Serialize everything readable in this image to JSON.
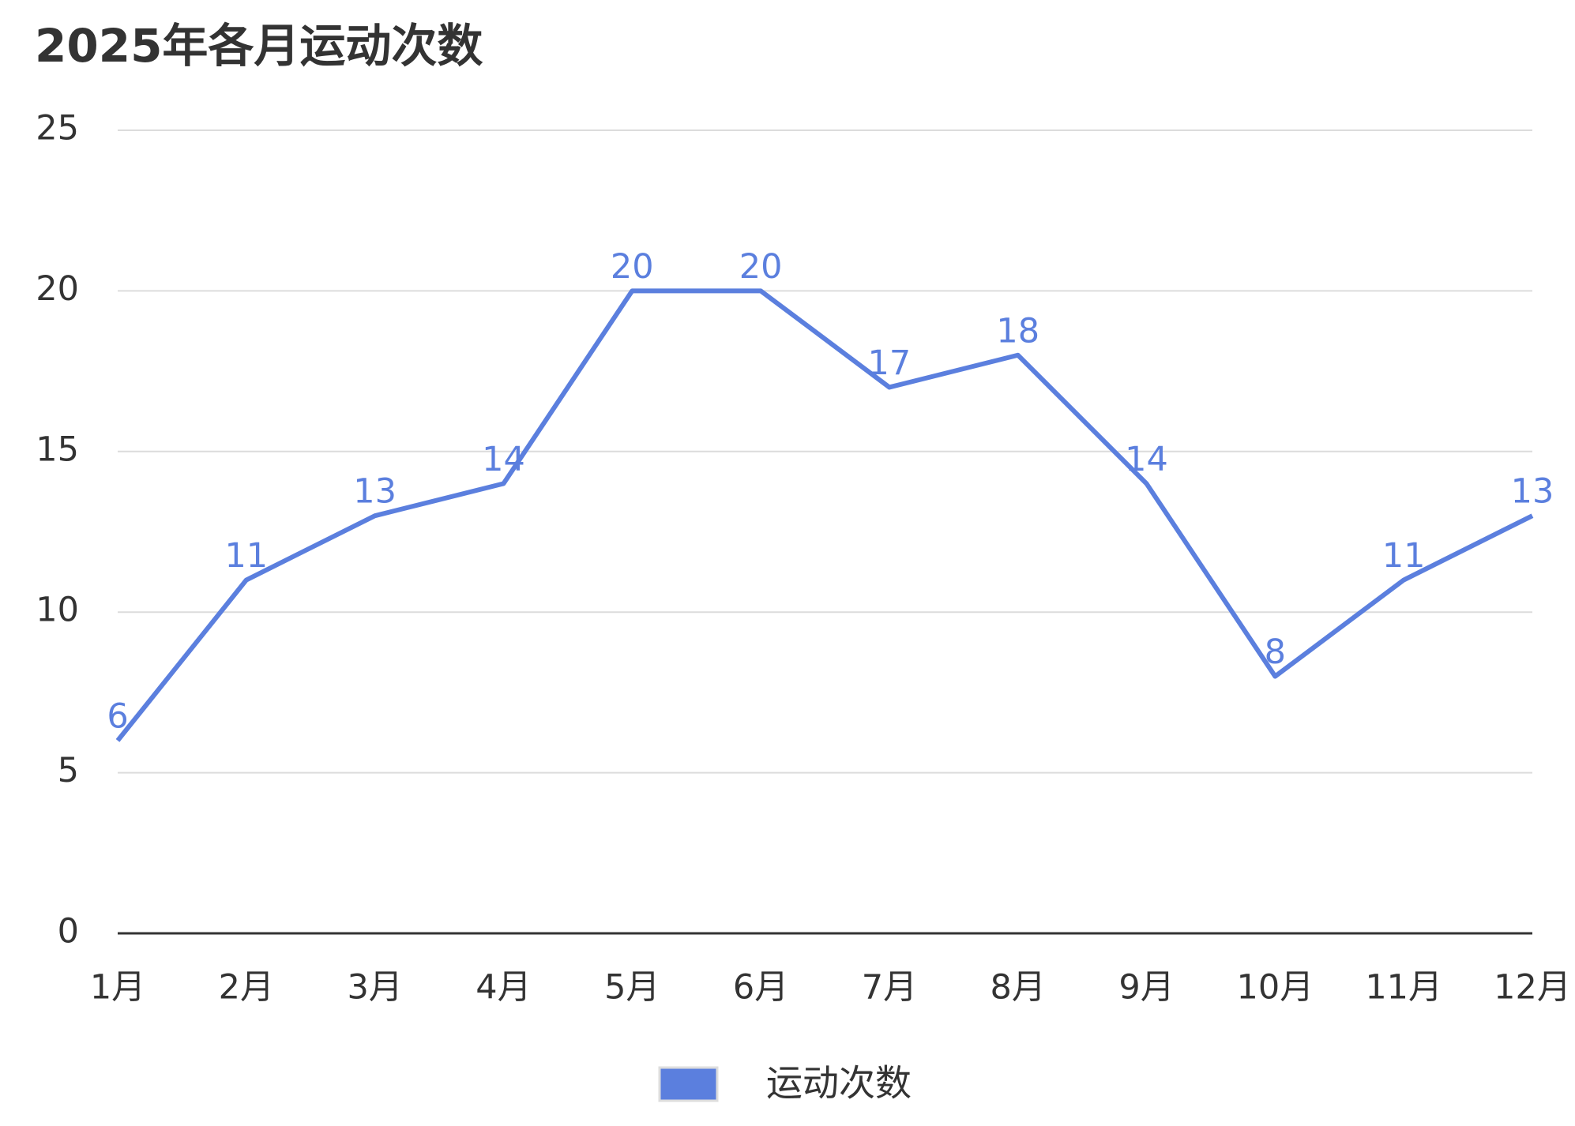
{
  "chart_data": {
    "type": "line",
    "title": "2025年各月运动次数",
    "categories": [
      "1月",
      "2月",
      "3月",
      "4月",
      "5月",
      "6月",
      "7月",
      "8月",
      "9月",
      "10月",
      "11月",
      "12月"
    ],
    "series": [
      {
        "name": "运动次数",
        "color": "#5b7fde",
        "values": [
          6,
          11,
          13,
          14,
          20,
          20,
          17,
          18,
          14,
          8,
          11,
          13
        ]
      }
    ],
    "ylim": [
      0,
      25
    ],
    "yticks": [
      0,
      5,
      10,
      15,
      20,
      25
    ],
    "grid": true,
    "legend": "bottom"
  }
}
